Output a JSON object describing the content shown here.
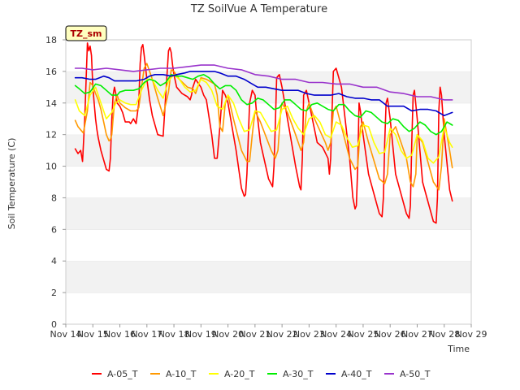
{
  "chart_data": {
    "type": "line",
    "title": "TZ SoilVue A Temperature",
    "xlabel": "Time",
    "ylabel": "Soil Temperature (C)",
    "badge": "TZ_sm",
    "ylim": [
      0,
      18
    ],
    "yticks": [
      0,
      2,
      4,
      6,
      8,
      10,
      12,
      14,
      16,
      18
    ],
    "xlim": [
      14,
      29
    ],
    "xticks": [
      14,
      15,
      16,
      17,
      18,
      19,
      20,
      21,
      22,
      23,
      24,
      25,
      26,
      27,
      28,
      29
    ],
    "xtick_labels": [
      "Nov 14",
      "Nov 15",
      "Nov 16",
      "Nov 17",
      "Nov 18",
      "Nov 19",
      "Nov 20",
      "Nov 21",
      "Nov 22",
      "Nov 23",
      "Nov 24",
      "Nov 25",
      "Nov 26",
      "Nov 27",
      "Nov 28",
      "Nov 29"
    ],
    "grid": "horizontal bands",
    "legend_position": "bottom",
    "series": [
      {
        "name": "A-05_T",
        "color": "#ff0000",
        "x": [
          14.35,
          14.45,
          14.55,
          14.62,
          14.7,
          14.8,
          14.85,
          14.9,
          14.95,
          15.0,
          15.05,
          15.1,
          15.15,
          15.2,
          15.3,
          15.5,
          15.6,
          15.65,
          15.7,
          15.75,
          15.8,
          15.85,
          15.9,
          16.0,
          16.1,
          16.2,
          16.3,
          16.35,
          16.4,
          16.5,
          16.6,
          16.7,
          16.75,
          16.8,
          16.85,
          16.9,
          17.0,
          17.1,
          17.2,
          17.4,
          17.6,
          17.8,
          17.85,
          17.9,
          17.95,
          18.0,
          18.1,
          18.2,
          18.3,
          18.5,
          18.6,
          18.65,
          18.7,
          18.8,
          19.0,
          19.1,
          19.2,
          19.4,
          19.5,
          19.6,
          19.65,
          19.7,
          19.8,
          19.9,
          20.0,
          20.1,
          20.3,
          20.5,
          20.6,
          20.65,
          20.7,
          20.8,
          20.9,
          21.0,
          21.05,
          21.1,
          21.2,
          21.5,
          21.65,
          21.7,
          21.75,
          21.8,
          21.9,
          22.0,
          22.2,
          22.5,
          22.65,
          22.7,
          22.75,
          22.8,
          22.9,
          23.0,
          23.3,
          23.5,
          23.7,
          23.75,
          23.8,
          23.85,
          23.9,
          24.0,
          24.2,
          24.5,
          24.62,
          24.7,
          24.75,
          24.8,
          24.85,
          24.9,
          25.0,
          25.2,
          25.6,
          25.7,
          25.75,
          25.8,
          25.85,
          25.9,
          26.0,
          26.2,
          26.6,
          26.7,
          26.75,
          26.8,
          26.85,
          26.9,
          27.0,
          27.2,
          27.6,
          27.7,
          27.75,
          27.8,
          27.85,
          27.9,
          28.0,
          28.2,
          28.3
        ],
        "y": [
          11.1,
          10.8,
          11.0,
          10.3,
          13.0,
          17.8,
          17.3,
          17.6,
          17.0,
          15.0,
          14.0,
          13.0,
          12.3,
          11.8,
          11.0,
          9.8,
          9.7,
          10.5,
          13.0,
          14.5,
          15.0,
          14.6,
          14.0,
          13.8,
          13.4,
          12.8,
          12.8,
          12.8,
          12.7,
          13.0,
          12.7,
          14.0,
          16.5,
          17.5,
          17.7,
          17.0,
          15.5,
          14.2,
          13.2,
          12.0,
          11.9,
          17.3,
          17.5,
          17.2,
          16.4,
          15.8,
          15.0,
          14.8,
          14.6,
          14.4,
          14.2,
          14.5,
          15.0,
          15.5,
          15.0,
          14.5,
          14.2,
          12.0,
          10.5,
          10.5,
          11.5,
          12.5,
          14.8,
          14.5,
          14.0,
          13.0,
          11.0,
          8.6,
          8.1,
          8.2,
          9.5,
          14.0,
          14.8,
          14.5,
          13.5,
          13.0,
          11.5,
          9.2,
          8.7,
          10.0,
          12.5,
          15.6,
          15.8,
          15.0,
          13.0,
          10.0,
          8.7,
          8.5,
          10.5,
          14.5,
          14.8,
          14.0,
          11.5,
          11.2,
          10.5,
          9.5,
          10.5,
          13.5,
          16.0,
          16.2,
          15.0,
          10.5,
          8.0,
          7.3,
          7.5,
          10.0,
          14.0,
          13.5,
          12.0,
          9.5,
          7.0,
          6.8,
          8.0,
          11.5,
          14.0,
          14.3,
          13.0,
          9.5,
          7.0,
          6.7,
          7.5,
          11.5,
          14.5,
          14.8,
          13.0,
          9.0,
          6.5,
          6.4,
          8.0,
          13.5,
          15.0,
          14.5,
          12.0,
          8.5,
          7.8
        ]
      },
      {
        "name": "A-10_T",
        "color": "#ff9900",
        "x": [
          14.35,
          14.45,
          14.55,
          14.65,
          14.8,
          14.9,
          15.0,
          15.1,
          15.2,
          15.3,
          15.4,
          15.5,
          15.6,
          15.65,
          15.7,
          15.75,
          15.8,
          15.9,
          16.0,
          16.2,
          16.4,
          16.6,
          16.7,
          16.8,
          16.9,
          17.0,
          17.2,
          17.4,
          17.6,
          17.8,
          17.9,
          18.0,
          18.2,
          18.5,
          18.7,
          18.8,
          19.0,
          19.2,
          19.5,
          19.6,
          19.7,
          19.8,
          19.9,
          20.0,
          20.2,
          20.5,
          20.7,
          20.8,
          20.9,
          21.0,
          21.2,
          21.6,
          21.75,
          21.85,
          21.95,
          22.0,
          22.2,
          22.5,
          22.7,
          22.8,
          22.9,
          23.0,
          23.2,
          23.6,
          23.7,
          23.8,
          23.9,
          24.0,
          24.2,
          24.5,
          24.7,
          24.8,
          24.9,
          25.0,
          25.2,
          25.6,
          25.8,
          25.9,
          26.0,
          26.2,
          26.6,
          26.75,
          26.85,
          26.95,
          27.0,
          27.2,
          27.6,
          27.8,
          27.9,
          28.0,
          28.2,
          28.3
        ],
        "y": [
          12.9,
          12.5,
          12.3,
          12.1,
          13.5,
          15.3,
          15.1,
          14.6,
          14.2,
          13.6,
          12.8,
          12.0,
          11.6,
          11.7,
          12.0,
          13.0,
          14.0,
          14.5,
          14.0,
          13.7,
          13.5,
          13.5,
          13.7,
          15.0,
          16.2,
          16.5,
          15.5,
          14.3,
          13.2,
          14.7,
          16.1,
          16.0,
          15.5,
          15.0,
          14.9,
          14.6,
          15.6,
          15.5,
          15.2,
          14.5,
          12.5,
          12.2,
          14.0,
          14.5,
          13.0,
          11.0,
          10.3,
          10.3,
          12.0,
          13.5,
          12.8,
          11.0,
          10.5,
          11.0,
          13.5,
          14.0,
          13.4,
          12.0,
          11.0,
          11.5,
          13.5,
          14.0,
          13.0,
          11.5,
          11.0,
          11.5,
          13.5,
          13.8,
          12.5,
          10.5,
          9.8,
          10.0,
          12.5,
          12.8,
          11.5,
          9.2,
          8.9,
          9.5,
          12.0,
          12.5,
          10.5,
          9.0,
          8.7,
          9.5,
          12.0,
          11.5,
          9.0,
          8.5,
          10.0,
          13.0,
          11.0,
          9.9
        ]
      },
      {
        "name": "A-20_T",
        "color": "#ffff00",
        "x": [
          14.35,
          14.5,
          14.7,
          14.9,
          15.1,
          15.3,
          15.5,
          15.7,
          15.85,
          16.0,
          16.2,
          16.4,
          16.6,
          16.8,
          17.0,
          17.2,
          17.4,
          17.6,
          17.8,
          18.0,
          18.2,
          18.4,
          18.6,
          18.8,
          19.0,
          19.2,
          19.4,
          19.6,
          19.8,
          20.0,
          20.2,
          20.4,
          20.6,
          20.8,
          21.0,
          21.2,
          21.4,
          21.6,
          21.8,
          22.0,
          22.2,
          22.4,
          22.6,
          22.8,
          23.0,
          23.2,
          23.4,
          23.6,
          23.8,
          24.0,
          24.2,
          24.4,
          24.6,
          24.8,
          25.0,
          25.2,
          25.4,
          25.6,
          25.8,
          26.0,
          26.2,
          26.4,
          26.6,
          26.8,
          27.0,
          27.2,
          27.4,
          27.6,
          27.8,
          28.0,
          28.2,
          28.3
        ],
        "y": [
          14.2,
          13.5,
          13.2,
          14.5,
          15.0,
          14.0,
          13.0,
          13.4,
          14.0,
          14.2,
          14.0,
          13.9,
          13.9,
          14.8,
          15.5,
          15.5,
          14.8,
          14.3,
          15.4,
          15.8,
          15.5,
          15.0,
          14.7,
          14.8,
          15.5,
          15.3,
          14.8,
          13.8,
          13.6,
          14.5,
          14.0,
          13.0,
          12.2,
          12.3,
          13.5,
          13.4,
          12.8,
          12.2,
          12.3,
          13.6,
          13.8,
          13.0,
          12.4,
          12.0,
          13.0,
          13.2,
          12.8,
          12.0,
          11.8,
          12.8,
          12.6,
          11.8,
          11.2,
          11.3,
          12.6,
          12.5,
          11.5,
          10.8,
          10.9,
          12.4,
          12.0,
          11.0,
          10.5,
          10.7,
          12.0,
          11.6,
          10.5,
          10.2,
          10.6,
          12.5,
          11.5,
          11.2
        ]
      },
      {
        "name": "A-30_T",
        "color": "#00ee00",
        "x": [
          14.35,
          14.5,
          14.7,
          14.9,
          15.1,
          15.3,
          15.5,
          15.7,
          15.9,
          16.0,
          16.2,
          16.5,
          16.7,
          16.9,
          17.1,
          17.3,
          17.5,
          17.7,
          17.9,
          18.1,
          18.3,
          18.5,
          18.7,
          18.9,
          19.1,
          19.3,
          19.5,
          19.7,
          19.9,
          20.1,
          20.3,
          20.5,
          20.7,
          20.9,
          21.1,
          21.3,
          21.5,
          21.7,
          21.9,
          22.1,
          22.3,
          22.5,
          22.7,
          22.9,
          23.1,
          23.3,
          23.5,
          23.7,
          23.9,
          24.1,
          24.3,
          24.5,
          24.7,
          24.9,
          25.1,
          25.3,
          25.5,
          25.7,
          25.9,
          26.1,
          26.3,
          26.5,
          26.7,
          26.9,
          27.1,
          27.3,
          27.5,
          27.7,
          27.9,
          28.1,
          28.3
        ],
        "y": [
          15.1,
          14.9,
          14.6,
          14.7,
          15.2,
          15.1,
          14.8,
          14.5,
          14.5,
          14.7,
          14.8,
          14.8,
          14.9,
          15.3,
          15.5,
          15.4,
          15.1,
          15.3,
          15.8,
          15.7,
          15.7,
          15.6,
          15.5,
          15.7,
          15.8,
          15.6,
          15.2,
          14.9,
          15.1,
          15.1,
          14.8,
          14.2,
          13.9,
          14.0,
          14.3,
          14.2,
          13.9,
          13.6,
          13.7,
          14.2,
          14.2,
          13.9,
          13.6,
          13.5,
          13.9,
          14.0,
          13.8,
          13.6,
          13.5,
          13.9,
          13.9,
          13.5,
          13.2,
          13.1,
          13.5,
          13.4,
          13.1,
          12.8,
          12.7,
          13.0,
          12.9,
          12.5,
          12.2,
          12.4,
          12.8,
          12.6,
          12.2,
          12.0,
          12.2,
          12.8,
          12.6
        ]
      },
      {
        "name": "A-40_T",
        "color": "#0000cc",
        "x": [
          14.35,
          14.6,
          14.9,
          15.1,
          15.4,
          15.6,
          15.8,
          16.0,
          16.3,
          16.6,
          16.9,
          17.1,
          17.3,
          17.6,
          17.9,
          18.1,
          18.4,
          18.6,
          18.9,
          19.1,
          19.3,
          19.5,
          19.7,
          20.0,
          20.3,
          20.6,
          20.9,
          21.1,
          21.4,
          21.7,
          22.0,
          22.3,
          22.6,
          22.9,
          23.2,
          23.5,
          23.8,
          24.1,
          24.4,
          24.7,
          25.0,
          25.3,
          25.6,
          25.9,
          26.2,
          26.5,
          26.8,
          27.1,
          27.4,
          27.7,
          28.0,
          28.3
        ],
        "y": [
          15.6,
          15.6,
          15.5,
          15.5,
          15.7,
          15.6,
          15.4,
          15.4,
          15.4,
          15.4,
          15.5,
          15.7,
          15.8,
          15.8,
          15.7,
          15.8,
          15.9,
          16.0,
          16.0,
          16.0,
          16.0,
          16.0,
          15.9,
          15.7,
          15.7,
          15.5,
          15.2,
          15.0,
          15.0,
          14.9,
          14.8,
          14.8,
          14.8,
          14.6,
          14.5,
          14.5,
          14.5,
          14.6,
          14.4,
          14.3,
          14.3,
          14.2,
          14.2,
          13.8,
          13.8,
          13.8,
          13.5,
          13.6,
          13.6,
          13.5,
          13.2,
          13.4
        ]
      },
      {
        "name": "A-50_T",
        "color": "#9933cc",
        "x": [
          14.35,
          14.6,
          15.0,
          15.5,
          16.0,
          16.5,
          17.0,
          17.5,
          18.0,
          18.5,
          19.0,
          19.5,
          20.0,
          20.5,
          21.0,
          21.5,
          22.0,
          22.5,
          23.0,
          23.5,
          24.0,
          24.5,
          25.0,
          25.5,
          26.0,
          26.5,
          27.0,
          27.5,
          28.0,
          28.3
        ],
        "y": [
          16.2,
          16.2,
          16.1,
          16.2,
          16.1,
          16.0,
          16.1,
          16.2,
          16.2,
          16.3,
          16.4,
          16.4,
          16.2,
          16.1,
          15.8,
          15.7,
          15.5,
          15.5,
          15.3,
          15.3,
          15.2,
          15.2,
          15.0,
          15.0,
          14.7,
          14.6,
          14.4,
          14.4,
          14.2,
          14.2
        ]
      }
    ]
  }
}
